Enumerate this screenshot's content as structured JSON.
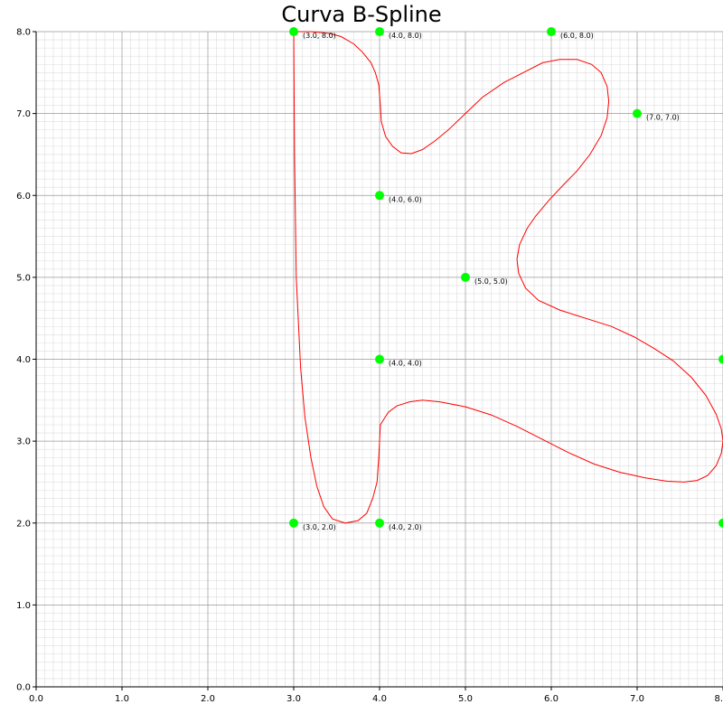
{
  "chart_data": {
    "type": "line",
    "title": "Curva B-Spline",
    "xlabel": "",
    "ylabel": "",
    "xlim": [
      0,
      8
    ],
    "ylim": [
      0,
      8
    ],
    "grid": true,
    "x_ticks": [
      "0.0",
      "1.0",
      "2.0",
      "3.0",
      "4.0",
      "5.0",
      "6.0",
      "7.0",
      "8."
    ],
    "y_ticks": [
      "0.0",
      "1.0",
      "2.0",
      "3.0",
      "4.0",
      "5.0",
      "6.0",
      "7.0",
      "8.0"
    ],
    "colors": {
      "curve": "#ff0000",
      "points": "#00ff00",
      "grid_major": "#999999",
      "grid_minor": "#dddddd"
    },
    "control_points": [
      {
        "x": 3,
        "y": 2,
        "label": "(3.0, 2.0)"
      },
      {
        "x": 3,
        "y": 8,
        "label": "(3.0, 8.0)"
      },
      {
        "x": 4,
        "y": 8,
        "label": "(4.0, 8.0)"
      },
      {
        "x": 4,
        "y": 6,
        "label": "(4.0, 6.0)"
      },
      {
        "x": 6,
        "y": 8,
        "label": "(6.0, 8.0)"
      },
      {
        "x": 7,
        "y": 7,
        "label": "(7.0, 7.0)"
      },
      {
        "x": 5,
        "y": 5,
        "label": "(5.0, 5.0)"
      },
      {
        "x": 8,
        "y": 4,
        "label": ""
      },
      {
        "x": 8,
        "y": 2,
        "label": ""
      },
      {
        "x": 4,
        "y": 4,
        "label": "(4.0, 4.0)"
      },
      {
        "x": 4,
        "y": 2,
        "label": "(4.0, 2.0)"
      }
    ],
    "series": [
      {
        "values": [
          [
            3.0,
            8.0
          ],
          [
            3.01,
            6.5
          ],
          [
            3.03,
            5.0
          ],
          [
            3.08,
            3.9
          ],
          [
            3.13,
            3.3
          ],
          [
            3.2,
            2.8
          ],
          [
            3.27,
            2.45
          ],
          [
            3.35,
            2.2
          ],
          [
            3.45,
            2.05
          ],
          [
            3.6,
            2.0
          ],
          [
            3.75,
            2.03
          ],
          [
            3.85,
            2.12
          ],
          [
            3.92,
            2.3
          ],
          [
            3.97,
            2.5
          ],
          [
            3.99,
            2.8
          ],
          [
            4.01,
            3.2
          ],
          [
            4.1,
            3.35
          ],
          [
            4.2,
            3.43
          ],
          [
            4.35,
            3.48
          ],
          [
            4.5,
            3.5
          ],
          [
            4.7,
            3.48
          ],
          [
            5.0,
            3.42
          ],
          [
            5.3,
            3.32
          ],
          [
            5.6,
            3.18
          ],
          [
            5.9,
            3.02
          ],
          [
            6.2,
            2.86
          ],
          [
            6.5,
            2.72
          ],
          [
            6.8,
            2.62
          ],
          [
            7.1,
            2.55
          ],
          [
            7.35,
            2.51
          ],
          [
            7.55,
            2.5
          ],
          [
            7.7,
            2.52
          ],
          [
            7.82,
            2.58
          ],
          [
            7.92,
            2.7
          ],
          [
            7.98,
            2.85
          ],
          [
            8.0,
            3.0
          ],
          [
            7.98,
            3.15
          ],
          [
            7.92,
            3.33
          ],
          [
            7.8,
            3.56
          ],
          [
            7.63,
            3.78
          ],
          [
            7.42,
            3.98
          ],
          [
            7.2,
            4.13
          ],
          [
            6.97,
            4.27
          ],
          [
            6.7,
            4.4
          ],
          [
            6.4,
            4.5
          ],
          [
            6.1,
            4.6
          ],
          [
            5.85,
            4.72
          ],
          [
            5.7,
            4.87
          ],
          [
            5.62,
            5.05
          ],
          [
            5.6,
            5.22
          ],
          [
            5.63,
            5.4
          ],
          [
            5.72,
            5.6
          ],
          [
            5.82,
            5.75
          ],
          [
            5.98,
            5.95
          ],
          [
            6.15,
            6.14
          ],
          [
            6.3,
            6.3
          ],
          [
            6.45,
            6.5
          ],
          [
            6.58,
            6.73
          ],
          [
            6.65,
            6.95
          ],
          [
            6.67,
            7.15
          ],
          [
            6.65,
            7.33
          ],
          [
            6.58,
            7.5
          ],
          [
            6.47,
            7.6
          ],
          [
            6.3,
            7.66
          ],
          [
            6.1,
            7.66
          ],
          [
            5.9,
            7.62
          ],
          [
            5.6,
            7.46
          ],
          [
            5.45,
            7.38
          ],
          [
            5.2,
            7.2
          ],
          [
            5.0,
            7.0
          ],
          [
            4.8,
            6.8
          ],
          [
            4.65,
            6.67
          ],
          [
            4.5,
            6.56
          ],
          [
            4.37,
            6.51
          ],
          [
            4.25,
            6.52
          ],
          [
            4.15,
            6.6
          ],
          [
            4.07,
            6.72
          ],
          [
            4.02,
            6.9
          ],
          [
            4.01,
            7.1
          ],
          [
            3.99,
            7.35
          ],
          [
            3.95,
            7.5
          ],
          [
            3.9,
            7.62
          ],
          [
            3.8,
            7.75
          ],
          [
            3.7,
            7.85
          ],
          [
            3.55,
            7.94
          ],
          [
            3.4,
            7.98
          ],
          [
            3.2,
            8.0
          ],
          [
            3.0,
            8.0
          ]
        ]
      }
    ]
  }
}
